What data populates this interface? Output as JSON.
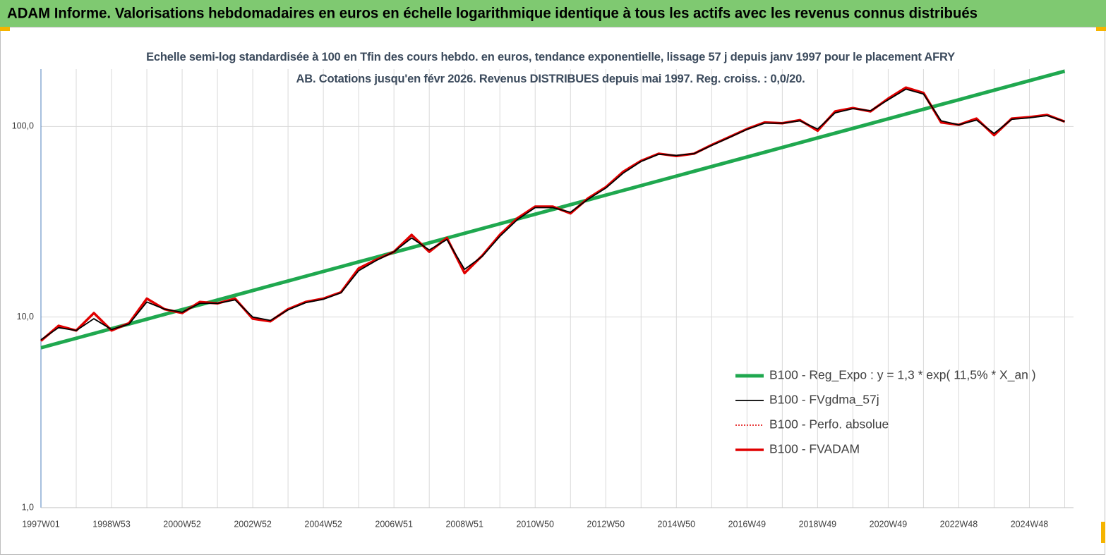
{
  "chart_data": {
    "type": "line",
    "title": "ADAM Informe. Valorisations hebdomadaires en euros en échelle logarithmique identique à tous les actifs avec les revenus connus distribués",
    "subtitle": "Echelle semi-log standardisée à 100 en Tfin des cours hebdo. en euros, tendance exponentielle, lissage 57 j depuis janv 1997 pour le placement AFRY AB. Cotations jusqu'en févr 2026. Revenus DISTRIBUES depuis mai 1997. Reg. croiss. : 0,0/20.",
    "categories": [
      "1997W01",
      null,
      null,
      null,
      "1998W53",
      null,
      null,
      null,
      "2000W52",
      null,
      null,
      null,
      "2002W52",
      null,
      null,
      null,
      "2004W52",
      null,
      null,
      null,
      "2006W51",
      null,
      null,
      null,
      "2008W51",
      null,
      null,
      null,
      "2010W50",
      null,
      null,
      null,
      "2012W50",
      null,
      null,
      null,
      "2014W50",
      null,
      null,
      null,
      "2016W49",
      null,
      null,
      null,
      "2018W49",
      null,
      null,
      null,
      "2020W49",
      null,
      null,
      null,
      "2022W48",
      null,
      null,
      null,
      "2024W48",
      null,
      null
    ],
    "series": [
      {
        "name": "B100 - Reg_Expo : y = 1,3 * exp( 11,5% *  X_an )",
        "color": "#1fa84f",
        "style": "solid",
        "values": [
          6.9,
          7.31,
          7.74,
          8.2,
          8.69,
          9.2,
          9.75,
          10.33,
          10.94,
          11.59,
          12.28,
          13.01,
          13.78,
          14.6,
          15.46,
          16.38,
          17.35,
          18.38,
          19.47,
          20.62,
          21.85,
          23.14,
          24.51,
          25.97,
          27.51,
          29.14,
          30.87,
          32.7,
          34.64,
          36.69,
          38.87,
          41.17,
          43.62,
          46.2,
          48.94,
          51.85,
          54.92,
          58.18,
          61.63,
          65.29,
          69.16,
          73.26,
          77.61,
          82.21,
          87.09,
          92.25,
          97.72,
          103.5,
          109.7,
          116.2,
          123.1,
          130.4,
          138.1,
          146.3,
          155.0,
          164.2,
          173.9,
          184.2,
          195.1
        ]
      },
      {
        "name": "B100 - FVgdma_57j",
        "color": "#000000",
        "style": "solid",
        "values": [
          7.6,
          8.8,
          8.5,
          9.8,
          8.6,
          9.2,
          12.0,
          11.0,
          10.6,
          11.8,
          11.8,
          12.3,
          10.0,
          9.6,
          10.9,
          11.9,
          12.4,
          13.4,
          17.5,
          19.8,
          22.0,
          26.0,
          22.5,
          25.5,
          17.8,
          20.8,
          26.5,
          32.5,
          37.5,
          37.5,
          35.5,
          41.5,
          47.5,
          57.0,
          65.5,
          71.5,
          70.5,
          72.0,
          79.5,
          87.5,
          96.5,
          104.0,
          104.0,
          107.0,
          97.0,
          118.0,
          124.0,
          121.0,
          138.0,
          157.0,
          148.0,
          107.0,
          102.0,
          108.0,
          92.0,
          109.0,
          111.0,
          114.0,
          106.0
        ]
      },
      {
        "name": "B100 - Perfo. absolue",
        "color": "#e00000",
        "style": "dotted",
        "values": [
          7.5,
          9.0,
          8.5,
          10.5,
          8.5,
          9.3,
          12.5,
          11.0,
          10.5,
          12.0,
          11.8,
          12.5,
          9.8,
          9.5,
          11.0,
          12.0,
          12.5,
          13.5,
          18.0,
          20.0,
          22.0,
          27.0,
          22.0,
          26.0,
          17.0,
          21.0,
          27.0,
          33.0,
          38.0,
          38.0,
          35.0,
          42.0,
          48.0,
          58.0,
          66.0,
          72.0,
          70.0,
          72.0,
          80.0,
          88.0,
          97.0,
          105.0,
          104.0,
          108.0,
          95.0,
          120.0,
          125.0,
          120.0,
          140.0,
          160.0,
          150.0,
          105.0,
          102.0,
          110.0,
          90.0,
          110.0,
          112.0,
          115.0,
          106.0
        ]
      },
      {
        "name": "B100 - FVADAM",
        "color": "#e00000",
        "style": "solid",
        "values": [
          7.5,
          9.0,
          8.5,
          10.5,
          8.5,
          9.3,
          12.5,
          11.0,
          10.5,
          12.0,
          11.8,
          12.5,
          9.8,
          9.5,
          11.0,
          12.0,
          12.5,
          13.5,
          18.0,
          20.0,
          22.0,
          27.0,
          22.0,
          26.0,
          17.0,
          21.0,
          27.0,
          33.0,
          38.0,
          38.0,
          35.0,
          42.0,
          48.0,
          58.0,
          66.0,
          72.0,
          70.0,
          72.0,
          80.0,
          88.0,
          97.0,
          105.0,
          104.0,
          108.0,
          95.0,
          120.0,
          125.0,
          120.0,
          140.0,
          160.0,
          150.0,
          105.0,
          102.0,
          110.0,
          90.0,
          110.0,
          112.0,
          115.0,
          106.0
        ]
      }
    ],
    "y_scale": "log",
    "ylim": [
      1,
      200
    ],
    "yticks": [
      {
        "value": 1,
        "label": "1,0"
      },
      {
        "value": 10,
        "label": "10,0"
      },
      {
        "value": 100,
        "label": "100,0"
      }
    ],
    "grid": true,
    "legend": "lower-right"
  }
}
